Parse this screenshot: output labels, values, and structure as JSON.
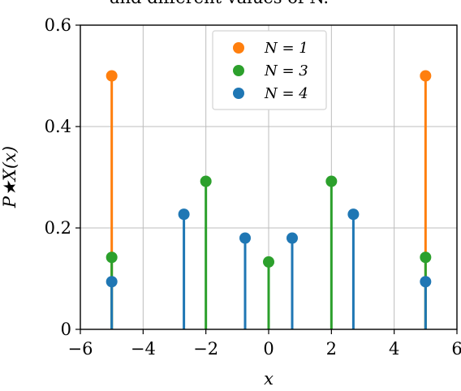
{
  "chart_data": {
    "type": "stem",
    "title": "and different values of N.",
    "xlabel": "x",
    "ylabel": "P★X(x)",
    "xlim": [
      -6,
      6
    ],
    "ylim": [
      0,
      0.6
    ],
    "xticks": [
      -6,
      -4,
      -2,
      0,
      2,
      4,
      6
    ],
    "yticks": [
      0,
      0.2,
      0.4,
      0.6
    ],
    "xtick_labels": [
      "−6",
      "−4",
      "−2",
      "0",
      "2",
      "4",
      "6"
    ],
    "ytick_labels": [
      "0",
      "0.2",
      "0.4",
      "0.6"
    ],
    "grid": true,
    "legend_position": "top-center",
    "series": [
      {
        "name": "N = 1",
        "color": "#ff7f0e",
        "x": [
          -5,
          5
        ],
        "y": [
          0.5,
          0.5
        ]
      },
      {
        "name": "N = 3",
        "color": "#2ca02c",
        "x": [
          -5,
          -2,
          0,
          2,
          5
        ],
        "y": [
          0.142,
          0.292,
          0.133,
          0.292,
          0.142
        ]
      },
      {
        "name": "N = 4",
        "color": "#1f77b4",
        "x": [
          -5,
          -2.7,
          -0.75,
          0.75,
          2.7,
          5
        ],
        "y": [
          0.094,
          0.227,
          0.18,
          0.18,
          0.227,
          0.094
        ]
      }
    ]
  }
}
